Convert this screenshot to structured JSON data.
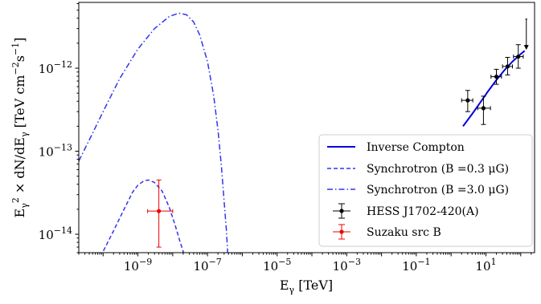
{
  "chart_data": {
    "type": "line",
    "title": "",
    "xlabel": {
      "base": "E",
      "sub": "γ",
      "unit": " [TeV]"
    },
    "ylabel": {
      "pre": "E",
      "sub1": "γ",
      "sup1": "2",
      "mid": " × dN/dE",
      "sub2": "γ",
      "unit": " [TeV cm",
      "sup2": "−2",
      "s": "s",
      "sup3": "−1",
      "close": "]"
    },
    "x_scale": "log",
    "y_scale": "log",
    "xlim": [
      2e-11,
      250
    ],
    "ylim": [
      6e-15,
      6.2e-12
    ],
    "x_ticks": [
      {
        "value": 1e-09,
        "base": "10",
        "exp": "−9"
      },
      {
        "value": 1e-07,
        "base": "10",
        "exp": "−7"
      },
      {
        "value": 1e-05,
        "base": "10",
        "exp": "−5"
      },
      {
        "value": 0.001,
        "base": "10",
        "exp": "−3"
      },
      {
        "value": 0.1,
        "base": "10",
        "exp": "−1"
      },
      {
        "value": 10,
        "base": "10",
        "exp": "1"
      }
    ],
    "y_ticks": [
      {
        "value": 1e-14,
        "base": "10",
        "exp": "−14"
      },
      {
        "value": 1e-13,
        "base": "10",
        "exp": "−13"
      },
      {
        "value": 1e-12,
        "base": "10",
        "exp": "−12"
      }
    ],
    "grid": false,
    "legend_position": "lower-right",
    "series": [
      {
        "name": "Inverse Compton",
        "kind": "line",
        "color": "#0000dd",
        "dash": "solid",
        "x": [
          2.2,
          4,
          7,
          12,
          20,
          35,
          60,
          100,
          130
        ],
        "y": [
          2e-13,
          2.8e-13,
          3.9e-13,
          5.4e-13,
          7.2e-13,
          9.6e-13,
          1.22e-12,
          1.48e-12,
          1.62e-12
        ]
      },
      {
        "name": "Synchrotron (B =0.3 μG)",
        "kind": "line",
        "color": "#3333ee",
        "dash": "dashed",
        "x": [
          5e-11,
          1e-10,
          2e-10,
          4e-10,
          7e-10,
          1e-09,
          1.5e-09,
          2e-09,
          3e-09,
          5e-09,
          8e-09,
          1.2e-08,
          1.6e-08,
          2e-08,
          2.3e-08
        ],
        "y": [
          3.3e-15,
          6.2e-15,
          1.1e-14,
          2e-14,
          3.2e-14,
          3.9e-14,
          4.4e-14,
          4.5e-14,
          4.2e-14,
          3.3e-14,
          2.1e-14,
          1.25e-14,
          8.3e-15,
          6.2e-15,
          4.8e-15
        ]
      },
      {
        "name": "Synchrotron (B =3.0 μG)",
        "kind": "line",
        "color": "#3333ee",
        "dash": "dashdot",
        "x": [
          2e-11,
          5e-11,
          1e-10,
          3e-10,
          1e-09,
          3e-09,
          8e-09,
          1.5e-08,
          2.5e-08,
          4e-08,
          6e-08,
          1e-07,
          1.5e-07,
          2e-07,
          2.5e-07,
          3e-07,
          3.5e-07,
          4e-07
        ],
        "y": [
          7.6e-14,
          1.65e-13,
          3e-13,
          7.5e-13,
          1.7e-12,
          3e-12,
          4.2e-12,
          4.6e-12,
          4.4e-12,
          3.6e-12,
          2.5e-12,
          1.2e-12,
          4.7e-13,
          1.8e-13,
          6.7e-14,
          2.5e-14,
          1.1e-14,
          4e-15
        ]
      },
      {
        "name": "HESS J1702-420(A)",
        "kind": "errorbar",
        "color": "#000000",
        "points": [
          {
            "x": 3.0,
            "y": 4.1e-13,
            "xerr": [
              2.0,
              4.2
            ],
            "yerr": [
              3e-13,
              5.4e-13
            ]
          },
          {
            "x": 8.5,
            "y": 3.3e-13,
            "xerr": [
              5.8,
              13.5
            ],
            "yerr": [
              2.1e-13,
              4.6e-13
            ]
          },
          {
            "x": 20,
            "y": 7.9e-13,
            "xerr": [
              14,
              28
            ],
            "yerr": [
              6.4e-13,
              9.7e-13
            ]
          },
          {
            "x": 42,
            "y": 1.05e-12,
            "xerr": [
              30,
              58
            ],
            "yerr": [
              8.3e-13,
              1.35e-12
            ]
          },
          {
            "x": 85,
            "y": 1.38e-12,
            "xerr": [
              62,
              118
            ],
            "yerr": [
              1e-12,
              1.92e-12
            ]
          },
          {
            "x": 145,
            "y": 3.9e-12,
            "xerr": [
              135,
              155
            ],
            "upper_limit": true,
            "arrow_to": 1.7e-12
          }
        ]
      },
      {
        "name": "Suzaku src B",
        "kind": "errorbar",
        "color": "#ee0000",
        "points": [
          {
            "x": 4e-09,
            "y": 1.9e-14,
            "xerr": [
              1.9e-09,
              1e-08
            ],
            "yerr": [
              7e-15,
              4.5e-14
            ]
          }
        ]
      }
    ]
  }
}
